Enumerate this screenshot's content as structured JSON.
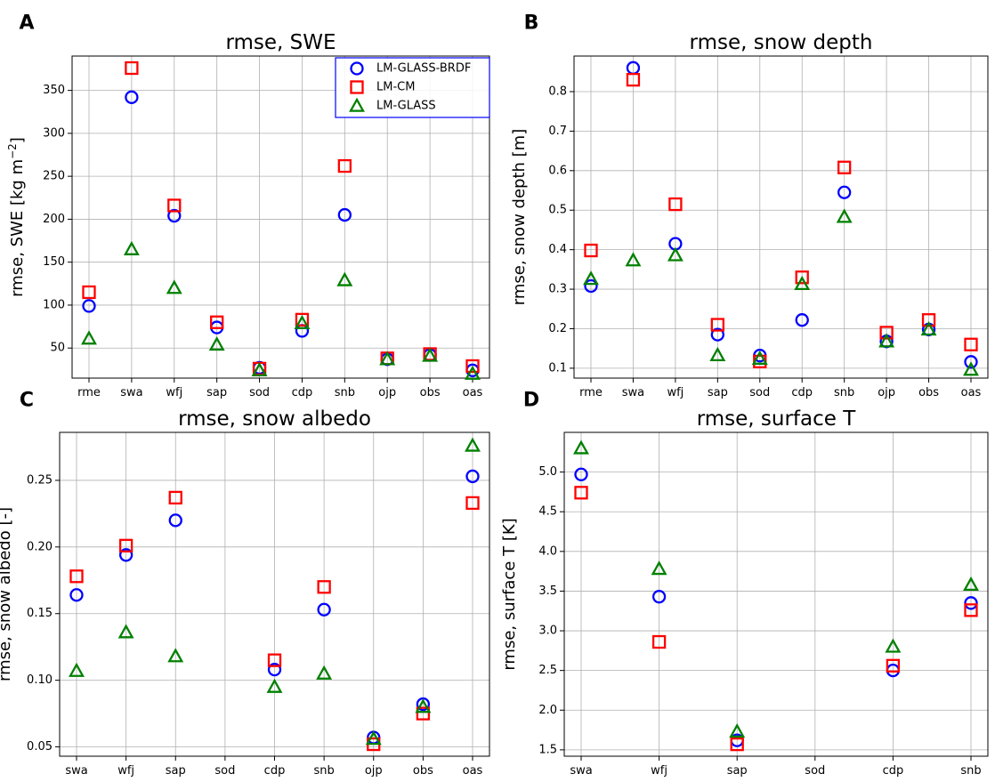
{
  "chart_data": [
    {
      "panel": "A",
      "type": "scatter",
      "title": "rmse, SWE",
      "ylabel": "rmse, SWE [kg m−2]",
      "ylabel_main": "rmse, SWE [kg m",
      "ylabel_sup": "−2",
      "ylabel_end": "]",
      "categories": [
        "rme",
        "swa",
        "wfj",
        "sap",
        "sod",
        "cdp",
        "snb",
        "ojp",
        "obs",
        "oas"
      ],
      "ylim": [
        15,
        390
      ],
      "yticks": [
        50,
        100,
        150,
        200,
        250,
        300,
        350
      ],
      "legend": "top-right",
      "grid": true,
      "series": [
        {
          "name": "LM-GLASS-BRDF",
          "marker": "circle",
          "color": "#0000ff",
          "values": [
            99,
            342,
            204,
            74,
            27,
            70,
            205,
            37,
            42,
            24
          ]
        },
        {
          "name": "LM-CM",
          "marker": "square",
          "color": "#ff0000",
          "values": [
            115,
            376,
            216,
            80,
            26,
            83,
            262,
            38,
            43,
            29
          ]
        },
        {
          "name": "LM-GLASS",
          "marker": "triangle",
          "color": "#008000",
          "values": [
            61,
            165,
            120,
            54,
            24,
            79,
            129,
            37,
            41,
            20
          ]
        }
      ]
    },
    {
      "panel": "B",
      "type": "scatter",
      "title": "rmse, snow depth",
      "ylabel": "rmse, snow depth [m]",
      "categories": [
        "rme",
        "swa",
        "wfj",
        "sap",
        "sod",
        "cdp",
        "snb",
        "ojp",
        "obs",
        "oas"
      ],
      "ylim": [
        0.075,
        0.89
      ],
      "yticks": [
        0.1,
        0.2,
        0.3,
        0.4,
        0.5,
        0.6,
        0.7,
        0.8
      ],
      "grid": true,
      "series": [
        {
          "name": "LM-GLASS-BRDF",
          "marker": "circle",
          "color": "#0000ff",
          "values": [
            0.308,
            0.86,
            0.415,
            0.185,
            0.132,
            0.222,
            0.545,
            0.168,
            0.198,
            0.116
          ]
        },
        {
          "name": "LM-CM",
          "marker": "square",
          "color": "#ff0000",
          "values": [
            0.398,
            0.83,
            0.515,
            0.21,
            0.117,
            0.33,
            0.608,
            0.19,
            0.222,
            0.16
          ]
        },
        {
          "name": "LM-GLASS",
          "marker": "triangle",
          "color": "#008000",
          "values": [
            0.326,
            0.373,
            0.386,
            0.133,
            0.124,
            0.313,
            0.483,
            0.168,
            0.198,
            0.096
          ]
        }
      ]
    },
    {
      "panel": "C",
      "type": "scatter",
      "title": "rmse, snow albedo",
      "ylabel": "rmse, snow albedo [-]",
      "categories": [
        "swa",
        "wfj",
        "sap",
        "sod",
        "cdp",
        "snb",
        "ojp",
        "obs",
        "oas"
      ],
      "ylim": [
        0.043,
        0.286
      ],
      "yticks": [
        0.05,
        0.1,
        0.15,
        0.2,
        0.25
      ],
      "ytick_labels": [
        "0.05",
        "0.10",
        "0.15",
        "0.20",
        "0.25"
      ],
      "grid": true,
      "series": [
        {
          "name": "LM-GLASS-BRDF",
          "marker": "circle",
          "color": "#0000ff",
          "values": [
            0.164,
            0.194,
            0.22,
            null,
            0.108,
            0.153,
            0.057,
            0.082,
            0.253
          ]
        },
        {
          "name": "LM-CM",
          "marker": "square",
          "color": "#ff0000",
          "values": [
            0.178,
            0.201,
            0.237,
            null,
            0.115,
            0.17,
            0.052,
            0.075,
            0.233
          ]
        },
        {
          "name": "LM-GLASS",
          "marker": "triangle",
          "color": "#008000",
          "values": [
            0.107,
            0.136,
            0.118,
            null,
            0.095,
            0.105,
            0.056,
            0.08,
            0.276
          ]
        }
      ]
    },
    {
      "panel": "D",
      "type": "scatter",
      "title": "rmse, surface T",
      "ylabel": "rmse, surface T [K]",
      "categories": [
        "swa",
        "wfj",
        "sap",
        "sod",
        "cdp",
        "snb"
      ],
      "ylim": [
        1.42,
        5.5
      ],
      "yticks": [
        1.5,
        2.0,
        2.5,
        3.0,
        3.5,
        4.0,
        4.5,
        5.0
      ],
      "ytick_labels": [
        "1.5",
        "2.0",
        "2.5",
        "3.0",
        "3.5",
        "4.0",
        "4.5",
        "5.0"
      ],
      "grid": true,
      "series": [
        {
          "name": "LM-GLASS-BRDF",
          "marker": "circle",
          "color": "#0000ff",
          "values": [
            4.97,
            3.43,
            1.62,
            null,
            2.5,
            3.35
          ]
        },
        {
          "name": "LM-CM",
          "marker": "square",
          "color": "#ff0000",
          "values": [
            4.74,
            2.86,
            1.57,
            null,
            2.56,
            3.26
          ]
        },
        {
          "name": "LM-GLASS",
          "marker": "triangle",
          "color": "#008000",
          "values": [
            5.3,
            3.78,
            1.73,
            null,
            2.8,
            3.58
          ]
        }
      ]
    }
  ]
}
